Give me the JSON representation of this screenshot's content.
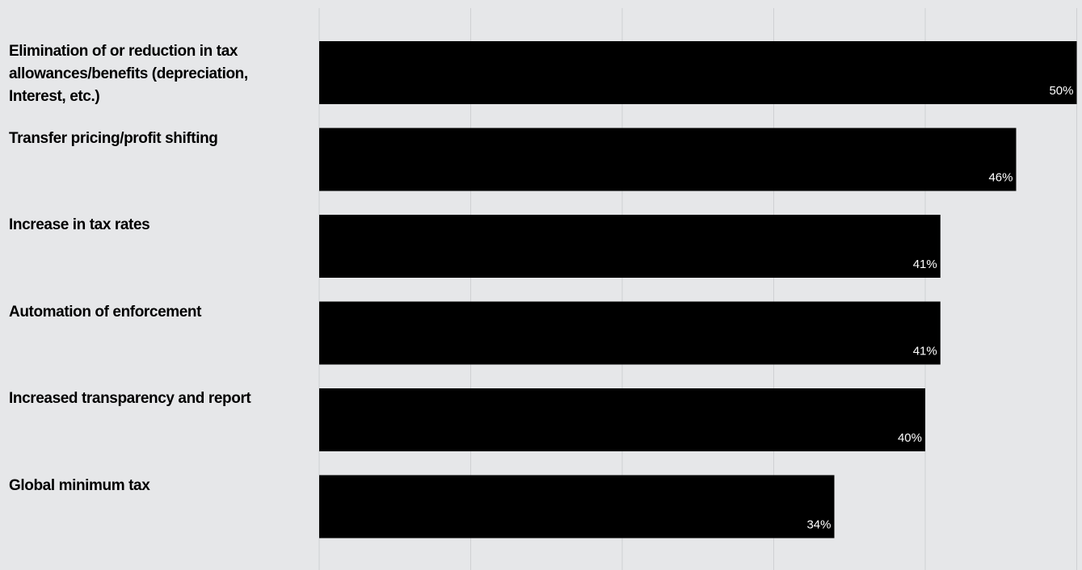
{
  "chart_data": {
    "type": "bar",
    "orientation": "horizontal",
    "categories": [
      "Elimination of or reduction in tax allowances/benefits (depreciation, Interest, etc.)",
      "Transfer pricing/profit shifting",
      "Increase in tax rates",
      "Automation of enforcement",
      "Increased transparency and report",
      "Global minimum tax"
    ],
    "values": [
      50,
      46,
      41,
      41,
      40,
      34
    ],
    "value_labels": [
      "50%",
      "46%",
      "41%",
      "41%",
      "40%",
      "34%"
    ],
    "xlim": [
      0,
      50
    ],
    "grid": true,
    "colors": {
      "bar": "#000000",
      "value_text": "#ffffff",
      "gridline": "#cfd0d3",
      "background": "#e6e7e9"
    }
  }
}
